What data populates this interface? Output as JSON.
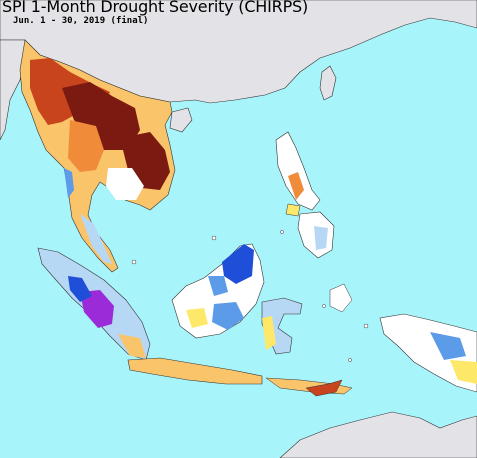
{
  "map": {
    "title": "SPI 1-Month Drought Severity (CHIRPS)",
    "subtitle": "Jun. 1 - 30, 2019 (final)"
  },
  "colors": {
    "ocean": "#a8f4fb",
    "outside_land": "#e3e3e7",
    "land_normal": "#ffffff",
    "abnormally_dry": "#fde86a",
    "moderate_drought": "#f9c46a",
    "severe_drought": "#f08b3a",
    "extreme_drought": "#c8441c",
    "exceptional_drought": "#7a1a10",
    "abnormally_wet": "#b7d8f5",
    "moderately_wet": "#5b9be8",
    "very_wet": "#1f4fd8",
    "extremely_wet": "#9b2bd9",
    "border": "#333333"
  }
}
